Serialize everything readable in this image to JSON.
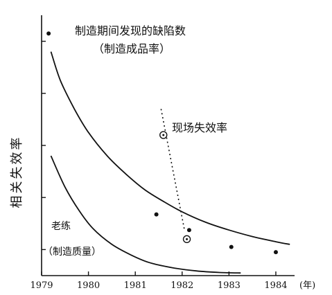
{
  "chart_data": {
    "type": "line",
    "title": "",
    "xlabel": "(年)",
    "ylabel": "相关失效率",
    "xlim": [
      1979,
      1984.4
    ],
    "ylim": [
      0,
      10
    ],
    "grid": false,
    "x_ticks": [
      1979,
      1980,
      1981,
      1982,
      1983,
      1984
    ],
    "x_tick_labels": [
      "1979",
      "1980",
      "1981",
      "1982",
      "1983",
      "1984"
    ],
    "annotations": {
      "defects_line1": "制造期间发现的缺陷数",
      "defects_line2": "（制造成品率）",
      "field_failure": "现场失效率",
      "aging_line1": "老练",
      "aging_line2": "（制造质量）"
    },
    "series": [
      {
        "style": "solid-curve-with-points",
        "curve_x": [
          1979.2,
          1979.4,
          1979.7,
          1980.0,
          1980.4,
          1980.8,
          1981.2,
          1981.6,
          1982.0,
          1982.5,
          1983.0,
          1983.5,
          1984.0,
          1984.3
        ],
        "curve_y": [
          8.6,
          7.5,
          6.4,
          5.5,
          4.6,
          3.9,
          3.3,
          2.85,
          2.45,
          2.05,
          1.75,
          1.5,
          1.3,
          1.2
        ],
        "points_x": [
          1979.15,
          1981.45,
          1982.15,
          1983.05,
          1984.0
        ],
        "points_y": [
          9.3,
          2.35,
          1.75,
          1.1,
          0.9
        ]
      },
      {
        "style": "dotted-with-open-markers",
        "x": [
          1981.55,
          1982.05
        ],
        "y": [
          6.4,
          1.75
        ],
        "markers_x": [
          1981.6,
          1982.1
        ],
        "markers_y": [
          5.4,
          1.4
        ]
      },
      {
        "style": "solid-curve",
        "x": [
          1979.2,
          1979.5,
          1979.8,
          1980.1,
          1980.5,
          1980.9,
          1981.3,
          1981.8,
          1982.3,
          1982.8,
          1983.25
        ],
        "y": [
          4.6,
          3.4,
          2.5,
          1.8,
          1.2,
          0.8,
          0.5,
          0.3,
          0.18,
          0.12,
          0.1
        ]
      }
    ]
  }
}
